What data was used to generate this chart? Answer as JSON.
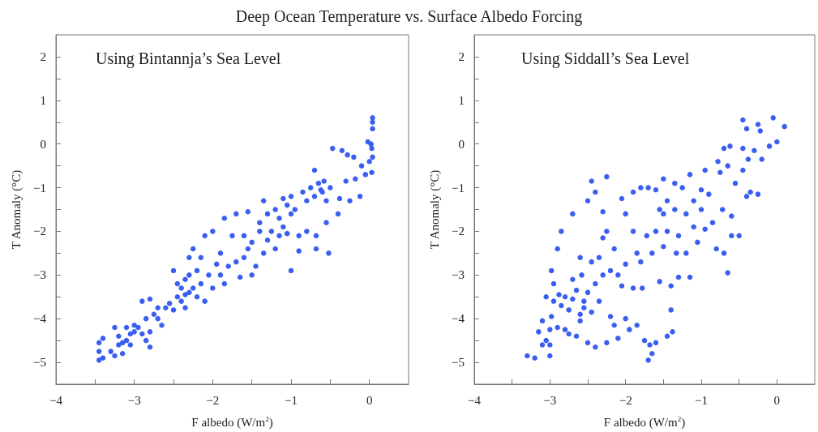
{
  "chart_data": [
    {
      "type": "scatter",
      "title": "Deep Ocean Temperature vs. Surface Albedo Forcing",
      "subtitle": "Using Bintannja’s Sea Level",
      "xlabel": "F albedo (W/m$^{2}$)",
      "ylabel": "T Anomaly (°C)",
      "xlim": [
        -4,
        0.5
      ],
      "ylim": [
        -5.5,
        2.5
      ],
      "xticks": [
        -4,
        {
          "value": -3.5,
          "label": null
        },
        -3,
        {
          "value": -2.5,
          "label": null
        },
        -2,
        {
          "value": -1.5,
          "label": null
        },
        -1,
        {
          "value": -0.5,
          "label": null
        },
        0
      ],
      "yticks": [
        -5,
        {
          "value": -4.5,
          "label": null
        },
        -4,
        {
          "value": -3.5,
          "label": null
        },
        -3,
        {
          "value": -2.5,
          "label": null
        },
        -2,
        {
          "value": -1.5,
          "label": null
        },
        -1,
        {
          "value": -0.5,
          "label": null
        },
        0,
        {
          "value": 0.5,
          "label": null
        },
        1,
        {
          "value": 1.5,
          "label": null
        },
        2
      ],
      "grid": false,
      "marker": "circle",
      "series": [
        {
          "color": "#3a5ef0",
          "x": [
            -3.45,
            -3.45,
            -3.45,
            -3.4,
            -3.4,
            -3.3,
            -3.25,
            -3.25,
            -3.2,
            -3.2,
            -3.15,
            -3.15,
            -3.1,
            -3.1,
            -3.05,
            -3.05,
            -3,
            -3,
            -2.95,
            -2.9,
            -2.9,
            -2.85,
            -2.85,
            -2.8,
            -2.8,
            -2.8,
            -2.75,
            -2.7,
            -2.7,
            -2.65,
            -2.6,
            -2.55,
            -2.5,
            -2.5,
            -2.45,
            -2.45,
            -2.4,
            -2.4,
            -2.35,
            -2.35,
            -2.35,
            -2.3,
            -2.3,
            -2.3,
            -2.25,
            -2.25,
            -2.2,
            -2.2,
            -2.15,
            -2.15,
            -2.1,
            -2.1,
            -2.05,
            -2,
            -2,
            -1.95,
            -1.9,
            -1.9,
            -1.85,
            -1.85,
            -1.8,
            -1.75,
            -1.7,
            -1.7,
            -1.65,
            -1.6,
            -1.6,
            -1.55,
            -1.55,
            -1.5,
            -1.5,
            -1.45,
            -1.4,
            -1.4,
            -1.35,
            -1.35,
            -1.3,
            -1.3,
            -1.25,
            -1.2,
            -1.2,
            -1.15,
            -1.15,
            -1.1,
            -1.1,
            -1.05,
            -1.05,
            -1,
            -1,
            -1,
            -0.95,
            -0.9,
            -0.9,
            -0.85,
            -0.8,
            -0.8,
            -0.75,
            -0.7,
            -0.7,
            -0.68,
            -0.68,
            -0.65,
            -0.62,
            -0.6,
            -0.58,
            -0.55,
            -0.55,
            -0.52,
            -0.5,
            -0.47,
            -0.4,
            -0.38,
            -0.35,
            -0.3,
            -0.28,
            -0.25,
            -0.2,
            -0.18,
            -0.12,
            -0.1,
            -0.05,
            -0.02,
            0,
            0.03,
            0.03,
            0.04,
            0.04,
            0.04,
            0.04,
            0.02
          ],
          "values": [
            -4.95,
            -4.75,
            -4.55,
            -4.45,
            -4.9,
            -4.75,
            -4.2,
            -4.85,
            -4.6,
            -4.4,
            -4.8,
            -4.55,
            -4.5,
            -4.2,
            -4.35,
            -4.6,
            -4.3,
            -4.15,
            -4.2,
            -4.35,
            -3.6,
            -4,
            -4.5,
            -4.65,
            -3.55,
            -4.3,
            -3.9,
            -3.75,
            -4,
            -4.15,
            -3.75,
            -3.65,
            -2.9,
            -3.8,
            -3.2,
            -3.5,
            -3.3,
            -3.6,
            -3.45,
            -3.1,
            -3.75,
            -3.4,
            -2.6,
            -3,
            -3.3,
            -2.4,
            -3.5,
            -2.9,
            -3.2,
            -2.6,
            -3.6,
            -2.1,
            -3,
            -3.3,
            -2,
            -2.75,
            -2.5,
            -3,
            -1.7,
            -3.2,
            -2.8,
            -2.1,
            -2.7,
            -1.6,
            -3.05,
            -2.6,
            -2.1,
            -1.55,
            -2.4,
            -2.25,
            -3,
            -2.8,
            -1.8,
            -2,
            -1.3,
            -2.5,
            -1.6,
            -2.2,
            -2,
            -1.5,
            -2.4,
            -1.7,
            -2.1,
            -1.25,
            -1.9,
            -1.4,
            -2.05,
            -1.6,
            -2.9,
            -1.2,
            -1.5,
            -2.45,
            -2.1,
            -1.1,
            -1.3,
            -2,
            -1,
            -0.6,
            -1.2,
            -2.1,
            -2.4,
            -0.9,
            -1.05,
            -1.1,
            -0.85,
            -1.3,
            -1.8,
            -2.5,
            -1,
            -0.1,
            -1.6,
            -1.25,
            -0.15,
            -0.85,
            -0.25,
            -1.3,
            -0.3,
            -0.8,
            -1.2,
            -0.5,
            -0.7,
            0.05,
            -0.4,
            -0.65,
            -0.1,
            0.35,
            0.5,
            0.6,
            -0.3,
            0
          ]
        }
      ]
    },
    {
      "type": "scatter",
      "subtitle": "Using Siddall’s Sea Level",
      "xlabel": "F albedo (W/m$^{2}$)",
      "ylabel": "T Anomaly (°C)",
      "xlim": [
        -4,
        0.5
      ],
      "ylim": [
        -5.5,
        2.5
      ],
      "xticks": [
        -4,
        {
          "value": -3.5,
          "label": null
        },
        -3,
        {
          "value": -2.5,
          "label": null
        },
        -2,
        {
          "value": -1.5,
          "label": null
        },
        -1,
        {
          "value": -0.5,
          "label": null
        },
        0
      ],
      "yticks": [
        -5,
        {
          "value": -4.5,
          "label": null
        },
        -4,
        {
          "value": -3.5,
          "label": null
        },
        -3,
        {
          "value": -2.5,
          "label": null
        },
        -2,
        {
          "value": -1.5,
          "label": null
        },
        -1,
        {
          "value": -0.5,
          "label": null
        },
        0,
        {
          "value": 0.5,
          "label": null
        },
        1,
        {
          "value": 1.5,
          "label": null
        },
        2
      ],
      "grid": false,
      "marker": "circle",
      "series": [
        {
          "color": "#3a5ef0",
          "x": [
            -3.3,
            -3.2,
            -3.15,
            -3.1,
            -3.1,
            -3.05,
            -3.05,
            -3,
            -3,
            -3,
            -2.98,
            -2.98,
            -2.95,
            -2.95,
            -2.9,
            -2.9,
            -2.88,
            -2.85,
            -2.85,
            -2.8,
            -2.8,
            -2.75,
            -2.75,
            -2.7,
            -2.7,
            -2.7,
            -2.65,
            -2.65,
            -2.6,
            -2.6,
            -2.6,
            -2.58,
            -2.55,
            -2.55,
            -2.5,
            -2.5,
            -2.5,
            -2.45,
            -2.45,
            -2.45,
            -2.4,
            -2.4,
            -2.4,
            -2.35,
            -2.35,
            -2.3,
            -2.3,
            -2.3,
            -2.25,
            -2.25,
            -2.25,
            -2.2,
            -2.2,
            -2.15,
            -2.15,
            -2.1,
            -2.1,
            -2.05,
            -2.05,
            -2,
            -2,
            -2,
            -1.95,
            -1.9,
            -1.9,
            -1.9,
            -1.85,
            -1.85,
            -1.8,
            -1.8,
            -1.78,
            -1.75,
            -1.72,
            -1.7,
            -1.7,
            -1.68,
            -1.65,
            -1.65,
            -1.6,
            -1.6,
            -1.6,
            -1.55,
            -1.55,
            -1.5,
            -1.5,
            -1.5,
            -1.45,
            -1.45,
            -1.45,
            -1.4,
            -1.4,
            -1.38,
            -1.35,
            -1.35,
            -1.33,
            -1.3,
            -1.3,
            -1.25,
            -1.2,
            -1.2,
            -1.15,
            -1.15,
            -1.1,
            -1.1,
            -1.05,
            -1,
            -1,
            -0.95,
            -0.95,
            -0.9,
            -0.85,
            -0.8,
            -0.78,
            -0.75,
            -0.72,
            -0.7,
            -0.7,
            -0.65,
            -0.65,
            -0.62,
            -0.6,
            -0.6,
            -0.55,
            -0.5,
            -0.45,
            -0.45,
            -0.45,
            -0.4,
            -0.4,
            -0.38,
            -0.35,
            -0.3,
            -0.25,
            -0.25,
            -0.22,
            -0.2,
            -0.1,
            -0.05,
            0,
            0.1
          ],
          "values": [
            -4.85,
            -4.9,
            -4.3,
            -4.6,
            -4.05,
            -4.5,
            -3.5,
            -4.85,
            -4.6,
            -4.25,
            -3.95,
            -2.9,
            -3.2,
            -3.6,
            -2.4,
            -4.2,
            -3.45,
            -3.7,
            -2,
            -3.5,
            -4.25,
            -3.8,
            -4.35,
            -3.1,
            -1.6,
            -3.55,
            -3.35,
            -4.4,
            -3.9,
            -2.6,
            -4.05,
            -3,
            -3.6,
            -3.75,
            -3.4,
            -1.3,
            -4.55,
            -2.7,
            -0.85,
            -3.85,
            -3.2,
            -4.65,
            -1.1,
            -2.6,
            -3.6,
            -1.55,
            -3,
            -2.15,
            -0.75,
            -2,
            -4.55,
            -2.9,
            -3.95,
            -2.4,
            -4.15,
            -3,
            -4.45,
            -1.25,
            -3.25,
            -2.75,
            -4,
            -1.6,
            -4.25,
            -2,
            -3.3,
            -1.1,
            -4.15,
            -2.5,
            -1,
            -2.7,
            -3.3,
            -4.5,
            -2.1,
            -4.95,
            -1,
            -4.6,
            -2.5,
            -4.8,
            -1.05,
            -2,
            -4.55,
            -3.15,
            -1.5,
            -1.6,
            -2.35,
            -0.8,
            -4.4,
            -1.3,
            -2,
            -3.25,
            -3.8,
            -4.3,
            -1.5,
            -0.9,
            -2.5,
            -2.1,
            -3.05,
            -1,
            -1.6,
            -2.5,
            -0.7,
            -3.05,
            -1.9,
            -1.3,
            -2.25,
            -1.05,
            -1.5,
            -1.95,
            -0.6,
            -1.15,
            -1.8,
            -2.4,
            -0.4,
            -0.65,
            -1.5,
            -2.5,
            -0.1,
            -2.95,
            -0.5,
            -0.05,
            -2.1,
            -1.65,
            -0.9,
            -2.1,
            -0.6,
            -0.1,
            0.55,
            -1.2,
            0.35,
            -0.35,
            -1.1,
            -0.15,
            0.45,
            -1.15,
            0.3,
            -0.35,
            -0.05,
            0.6,
            0.05,
            0.4
          ]
        }
      ]
    }
  ]
}
